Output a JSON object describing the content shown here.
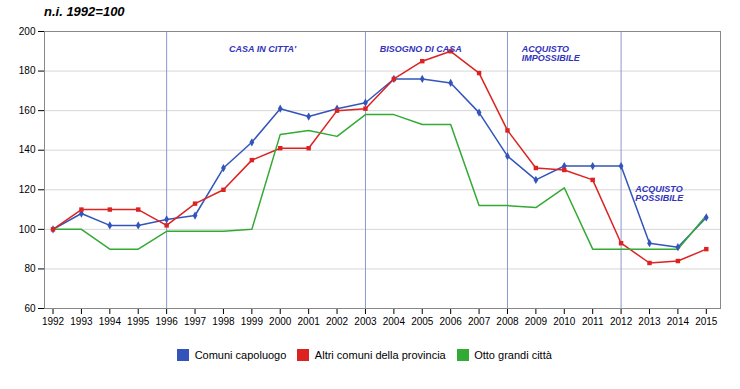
{
  "chart_data": {
    "type": "line",
    "title": "n.i. 1992=100",
    "x": [
      1992,
      1993,
      1994,
      1995,
      1996,
      1997,
      1998,
      1999,
      2000,
      2001,
      2002,
      2003,
      2004,
      2005,
      2006,
      2007,
      2008,
      2009,
      2010,
      2011,
      2012,
      2013,
      2014,
      2015
    ],
    "series": [
      {
        "name": "Comuni capoluogo",
        "color": "#3355bb",
        "marker": "diamond",
        "values": [
          100,
          108,
          102,
          102,
          105,
          107,
          131,
          144,
          161,
          157,
          161,
          164,
          176,
          176,
          174,
          159,
          137,
          125,
          132,
          132,
          132,
          93,
          91,
          106
        ]
      },
      {
        "name": "Altri comuni della provincia",
        "color": "#dd2222",
        "marker": "square",
        "values": [
          100,
          110,
          110,
          110,
          102,
          113,
          120,
          135,
          141,
          141,
          160,
          161,
          176,
          185,
          190,
          179,
          150,
          131,
          130,
          125,
          93,
          83,
          84,
          90
        ]
      },
      {
        "name": "Otto grandi città",
        "color": "#33aa33",
        "marker": "none",
        "values": [
          100,
          100,
          90,
          90,
          99,
          99,
          99,
          100,
          148,
          150,
          147,
          158,
          158,
          153,
          153,
          112,
          112,
          111,
          121,
          90,
          90,
          90,
          90,
          107
        ]
      }
    ],
    "vlines": [
      1996,
      2003,
      2008,
      2012
    ],
    "annotations": [
      {
        "x": 1998.2,
        "y": 193,
        "text": "CASA IN CITTA'"
      },
      {
        "x": 2003.5,
        "y": 193,
        "text": "BISOGNO DI CASA"
      },
      {
        "x": 2008.5,
        "y": 193,
        "text": "ACQUISTO\nIMPOSSIBILE"
      },
      {
        "x": 2012.5,
        "y": 122,
        "text": "ACQUISTO\nPOSSIBILE"
      }
    ],
    "xlim": [
      1991.7,
      2015.5
    ],
    "xticks": [
      1992,
      1993,
      1994,
      1995,
      1996,
      1997,
      1998,
      1999,
      2000,
      2001,
      2002,
      2003,
      2004,
      2005,
      2006,
      2007,
      2008,
      2009,
      2010,
      2011,
      2012,
      2013,
      2014,
      2015
    ],
    "ylim": [
      60,
      200
    ],
    "yticks": [
      60,
      80,
      100,
      120,
      140,
      160,
      180,
      200
    ],
    "grid": "y",
    "legend": "bottom"
  }
}
